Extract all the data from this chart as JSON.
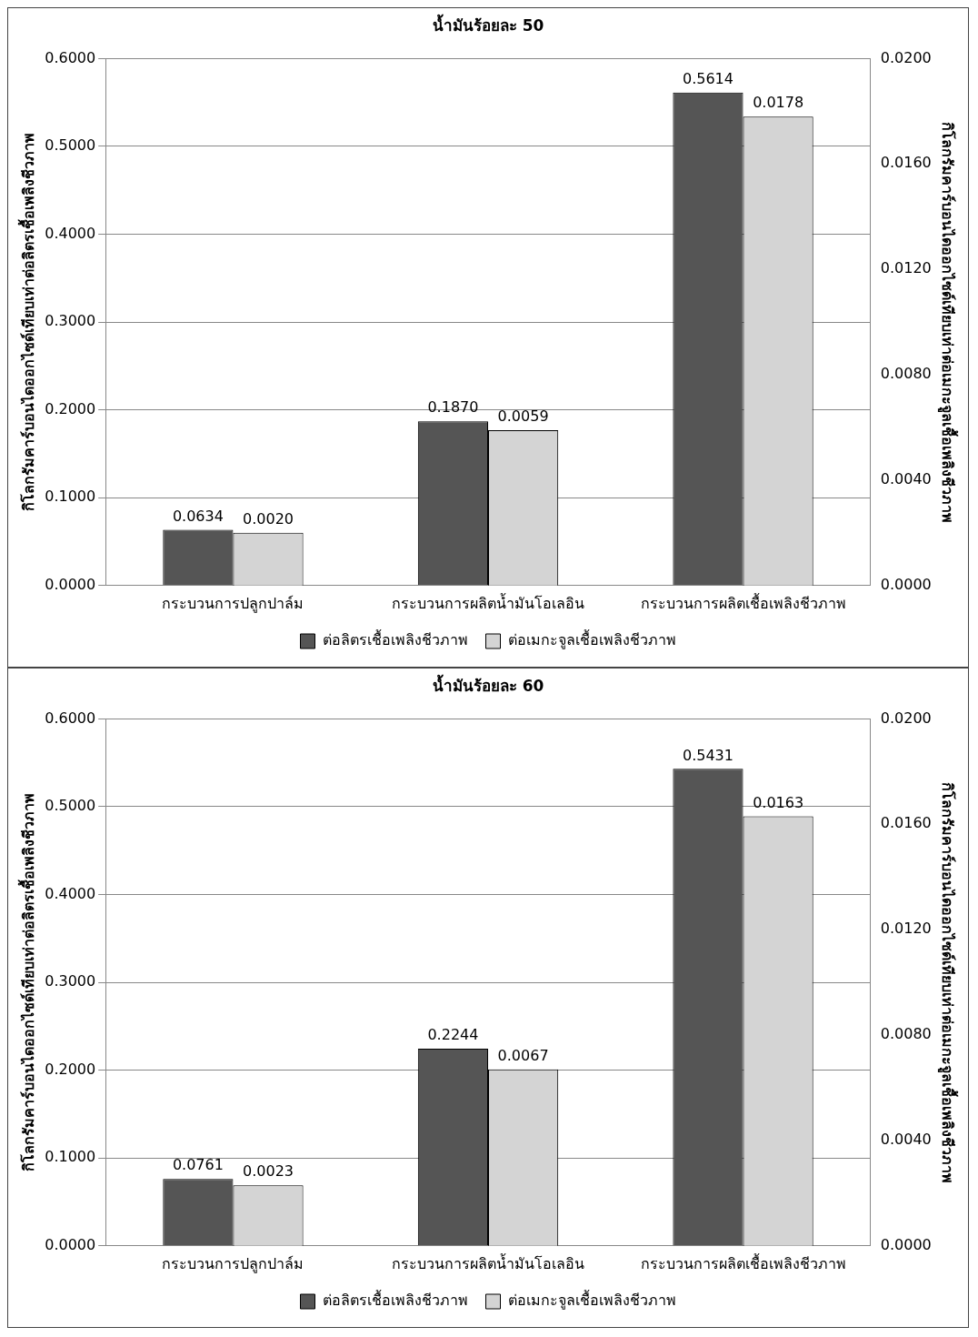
{
  "chart_data": [
    {
      "type": "bar",
      "title": "น้ำมันร้อยละ 50",
      "ylabel": "กิโลกรัมคาร์บอนไดออกไซด์เทียบเท่าต่อลิตรเชื้อเพลิงชีวภาพ",
      "y2label": "กิโลกรัมคาร์บอนไดออกไซด์เทียบเท่าต่อเมกะจูลเชื้อเพลิงชีวภาพ",
      "categories": [
        "กระบวนการปลูกปาล์ม",
        "กระบวนการผลิตน้ำมันโอเลอิน",
        "กระบวนการผลิตเชื้อเพลิงชีวภาพ"
      ],
      "series": [
        {
          "name": "ต่อลิตรเชื้อเพลิงชีวภาพ",
          "color": "#555555",
          "values": [
            0.0634,
            0.187,
            0.5614
          ],
          "value_labels": [
            "0.0634",
            "0.1870",
            "0.5614"
          ]
        },
        {
          "name": "ต่อเมกะจูลเชื้อเพลิงชีวภาพ",
          "color": "#d4d4d4",
          "axis": "y2",
          "values": [
            0.002,
            0.0059,
            0.0178
          ],
          "value_labels": [
            "0.0020",
            "0.0059",
            "0.0178"
          ]
        }
      ],
      "ylim": [
        0,
        0.6
      ],
      "yticks": [
        {
          "value": 0,
          "label": "0.0000"
        },
        {
          "value": 0.1,
          "label": "0.1000"
        },
        {
          "value": 0.2,
          "label": "0.2000"
        },
        {
          "value": 0.3,
          "label": "0.3000"
        },
        {
          "value": 0.4,
          "label": "0.4000"
        },
        {
          "value": 0.5,
          "label": "0.5000"
        },
        {
          "value": 0.6,
          "label": "0.6000"
        }
      ],
      "y2lim": [
        0,
        0.02
      ],
      "y2ticks": [
        {
          "value": 0,
          "label": "0.0000"
        },
        {
          "value": 0.004,
          "label": "0.0040"
        },
        {
          "value": 0.008,
          "label": "0.0080"
        },
        {
          "value": 0.012,
          "label": "0.0120"
        },
        {
          "value": 0.016,
          "label": "0.0160"
        },
        {
          "value": 0.02,
          "label": "0.0200"
        }
      ],
      "grid": "y",
      "legend": "bottom"
    },
    {
      "type": "bar",
      "title": "น้ำมันร้อยละ 60",
      "ylabel": "กิโลกรัมคาร์บอนไดออกไซด์เทียบเท่าต่อลิตรเชื้อเพลิงชีวภาพ",
      "y2label": "กิโลกรัมคาร์บอนไดออกไซด์เทียบเท่าต่อเมกะจูลเชื้อเพลิงชีวภาพ",
      "categories": [
        "กระบวนการปลูกปาล์ม",
        "กระบวนการผลิตน้ำมันโอเลอิน",
        "กระบวนการผลิตเชื้อเพลิงชีวภาพ"
      ],
      "series": [
        {
          "name": "ต่อลิตรเชื้อเพลิงชีวภาพ",
          "color": "#555555",
          "values": [
            0.0761,
            0.2244,
            0.5431
          ],
          "value_labels": [
            "0.0761",
            "0.2244",
            "0.5431"
          ]
        },
        {
          "name": "ต่อเมกะจูลเชื้อเพลิงชีวภาพ",
          "color": "#d4d4d4",
          "axis": "y2",
          "values": [
            0.0023,
            0.0067,
            0.0163
          ],
          "value_labels": [
            "0.0023",
            "0.0067",
            "0.0163"
          ]
        }
      ],
      "ylim": [
        0,
        0.6
      ],
      "yticks": [
        {
          "value": 0,
          "label": "0.0000"
        },
        {
          "value": 0.1,
          "label": "0.1000"
        },
        {
          "value": 0.2,
          "label": "0.2000"
        },
        {
          "value": 0.3,
          "label": "0.3000"
        },
        {
          "value": 0.4,
          "label": "0.4000"
        },
        {
          "value": 0.5,
          "label": "0.5000"
        },
        {
          "value": 0.6,
          "label": "0.6000"
        }
      ],
      "y2lim": [
        0,
        0.02
      ],
      "y2ticks": [
        {
          "value": 0,
          "label": "0.0000"
        },
        {
          "value": 0.004,
          "label": "0.0040"
        },
        {
          "value": 0.008,
          "label": "0.0080"
        },
        {
          "value": 0.012,
          "label": "0.0120"
        },
        {
          "value": 0.016,
          "label": "0.0160"
        },
        {
          "value": 0.02,
          "label": "0.0200"
        }
      ],
      "grid": "y",
      "legend": "bottom"
    }
  ]
}
